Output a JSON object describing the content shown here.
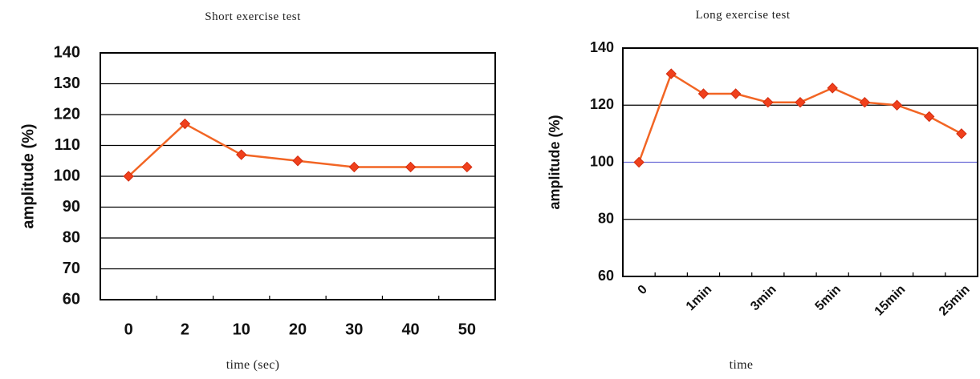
{
  "chart_data": [
    {
      "type": "line",
      "title": "Short exercise test",
      "xlabel": "time (sec)",
      "ylabel": "amplitude (%)",
      "categories": [
        "0",
        "2",
        "10",
        "20",
        "30",
        "40",
        "50"
      ],
      "series": [
        {
          "values": [
            100,
            117,
            107,
            105,
            103,
            103,
            103
          ]
        }
      ],
      "ylim": [
        60,
        140
      ],
      "yticks": [
        "60",
        "70",
        "80",
        "90",
        "100",
        "110",
        "120",
        "130",
        "140"
      ],
      "grid": true,
      "legend": "none",
      "colors": {
        "line": "#f26524",
        "marker": "#f0401c",
        "grid": "#000000"
      }
    },
    {
      "type": "line",
      "title": "Long exercise test",
      "xlabel": "time",
      "ylabel": "amplitude (%)",
      "categories": [
        "0",
        "",
        "1min",
        "",
        "3min",
        "",
        "5min",
        "",
        "15min",
        "",
        "25min"
      ],
      "series": [
        {
          "values": [
            100,
            131,
            124,
            124,
            121,
            121,
            126,
            121,
            120,
            116,
            110
          ]
        }
      ],
      "ylim": [
        60,
        140
      ],
      "yticks": [
        "60",
        "80",
        "100",
        "120",
        "140"
      ],
      "grid": true,
      "legend": "none",
      "colors": {
        "line": "#f26524",
        "marker": "#f0401c",
        "grid": "#000000",
        "grid_mid": "#6b6bd6"
      }
    }
  ]
}
